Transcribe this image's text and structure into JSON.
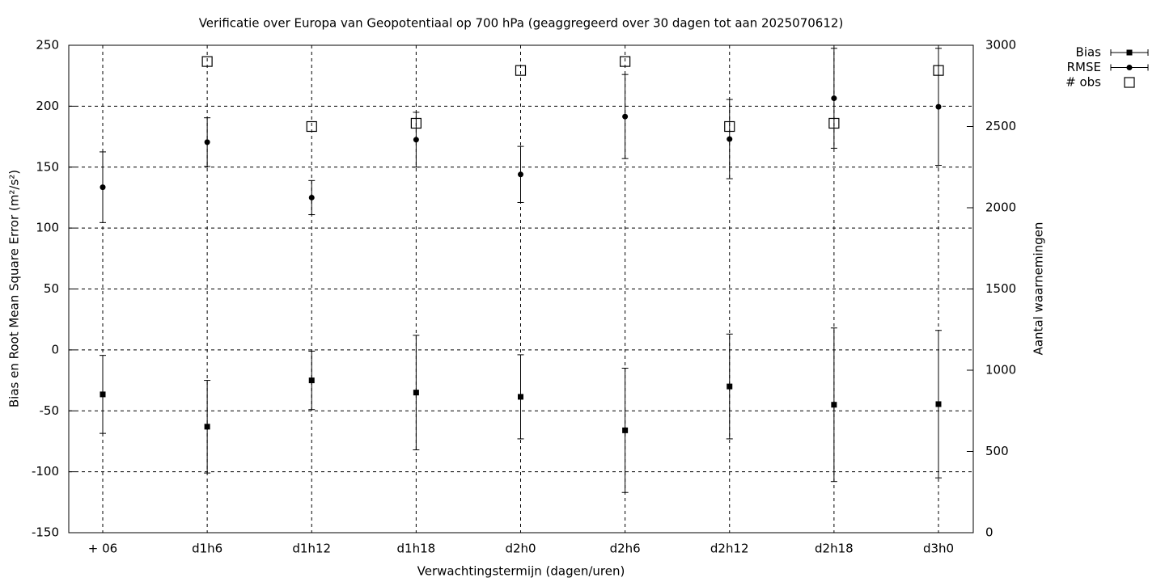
{
  "chart_data": {
    "type": "errorbar",
    "title": "Verificatie over Europa van Geopotentiaal op 700 hPa (geaggregeerd over 30 dagen tot aan 2025070612)",
    "xlabel": "Verwachtingstermijn (dagen/uren)",
    "ylabel": "Bias en Root Mean Square Error (m²/s²)",
    "y2label": "Aantal waarnemingen",
    "categories": [
      "+ 06",
      "d1h6",
      "d1h12",
      "d1h18",
      "d2h0",
      "d2h6",
      "d2h12",
      "d2h18",
      "d3h0"
    ],
    "ylim": [
      -150,
      250
    ],
    "yticks": [
      -150,
      -100,
      -50,
      0,
      50,
      100,
      150,
      200,
      250
    ],
    "y2lim": [
      0,
      3000
    ],
    "y2ticks": [
      0,
      500,
      1000,
      1500,
      2000,
      2500,
      3000
    ],
    "grid": true,
    "legend": "top-right",
    "series": [
      {
        "name": "Bias",
        "color": "#000000",
        "marker": "square",
        "values": [
          -36.5,
          -63,
          -25,
          -35,
          -38.5,
          -66,
          -30,
          -45,
          -44.5
        ],
        "errors": [
          32,
          38,
          24,
          47,
          34.5,
          51,
          43,
          63,
          60.5
        ]
      },
      {
        "name": "RMSE",
        "color": "#000000",
        "marker": "circle",
        "values": [
          133.5,
          170.5,
          125,
          172.5,
          144,
          191.5,
          173,
          206.5,
          199.5
        ],
        "errors": [
          29,
          20,
          14,
          22.5,
          23,
          34.5,
          32.5,
          41,
          48
        ]
      },
      {
        "name": "# obs",
        "color": "#000000",
        "marker": "open-square",
        "axis": "y2",
        "values": [
          null,
          2900,
          2500,
          2520,
          2845,
          2900,
          2500,
          2520,
          2845
        ]
      }
    ]
  }
}
